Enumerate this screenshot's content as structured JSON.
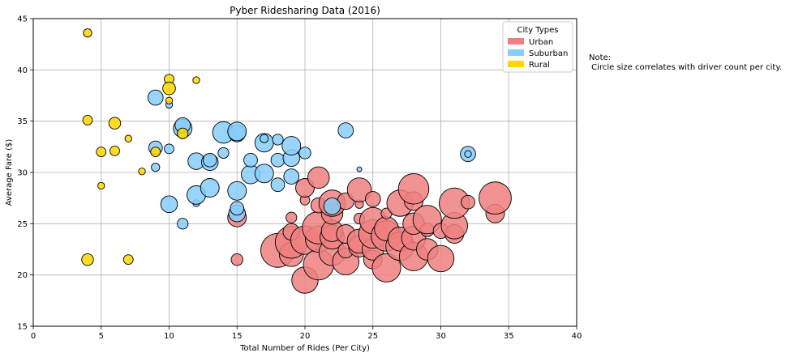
{
  "chart_data": {
    "type": "scatter",
    "title": "Pyber Ridesharing Data (2016)",
    "xlabel": "Total Number of Rides (Per City)",
    "ylabel": "Average Fare ($)",
    "xlim": [
      0,
      40
    ],
    "ylim": [
      15,
      45
    ],
    "xticks": [
      0,
      5,
      10,
      15,
      20,
      25,
      30,
      35,
      40
    ],
    "yticks": [
      15,
      20,
      25,
      30,
      35,
      40,
      45
    ],
    "grid": true,
    "legend": {
      "title": "City Types",
      "position": "upper-right"
    },
    "size_encoding": "driver count per city",
    "series": [
      {
        "name": "Urban",
        "color": "#f08080",
        "points": [
          [
            15,
            21.5,
            6
          ],
          [
            15,
            25.6,
            15
          ],
          [
            18,
            22.4,
            50
          ],
          [
            19,
            25.6,
            5
          ],
          [
            19,
            22.0,
            25
          ],
          [
            19,
            23.2,
            45
          ],
          [
            19,
            24.2,
            12
          ],
          [
            20,
            19.5,
            30
          ],
          [
            20,
            23.4,
            35
          ],
          [
            20,
            27.3,
            4
          ],
          [
            20,
            28.5,
            15
          ],
          [
            21,
            21.0,
            40
          ],
          [
            21,
            23.5,
            30
          ],
          [
            21,
            24.6,
            45
          ],
          [
            21,
            26.8,
            10
          ],
          [
            21,
            29.5,
            20
          ],
          [
            22,
            22.2,
            30
          ],
          [
            22,
            23.7,
            25
          ],
          [
            22,
            24.3,
            20
          ],
          [
            22,
            26.0,
            20
          ],
          [
            22,
            27.0,
            30
          ],
          [
            23,
            21.3,
            30
          ],
          [
            23,
            22.4,
            10
          ],
          [
            23,
            27.2,
            12
          ],
          [
            23,
            24.0,
            15
          ],
          [
            24,
            22.8,
            20
          ],
          [
            24,
            23.3,
            25
          ],
          [
            24,
            25.5,
            5
          ],
          [
            24,
            26.9,
            3
          ],
          [
            24,
            28.3,
            25
          ],
          [
            25,
            21.5,
            15
          ],
          [
            25,
            22.5,
            20
          ],
          [
            25,
            24.0,
            35
          ],
          [
            25,
            25.3,
            30
          ],
          [
            25,
            27.4,
            10
          ],
          [
            26,
            20.7,
            35
          ],
          [
            26,
            23.8,
            40
          ],
          [
            26,
            24.5,
            25
          ],
          [
            26,
            26.0,
            5
          ],
          [
            27,
            22.8,
            35
          ],
          [
            27,
            23.5,
            25
          ],
          [
            27,
            27.0,
            30
          ],
          [
            28,
            21.8,
            35
          ],
          [
            28,
            23.6,
            25
          ],
          [
            28,
            25.0,
            20
          ],
          [
            28,
            27.2,
            15
          ],
          [
            28,
            28.4,
            40
          ],
          [
            29,
            22.5,
            20
          ],
          [
            29,
            24.4,
            8
          ],
          [
            29,
            25.4,
            35
          ],
          [
            30,
            21.6,
            30
          ],
          [
            30,
            24.3,
            10
          ],
          [
            31,
            24.0,
            15
          ],
          [
            31,
            24.8,
            30
          ],
          [
            31,
            27.0,
            40
          ],
          [
            32,
            27.1,
            8
          ],
          [
            34,
            26.0,
            15
          ],
          [
            34,
            27.5,
            45
          ]
        ]
      },
      {
        "name": "Suburban",
        "color": "#87cefa",
        "points": [
          [
            9,
            30.5,
            3
          ],
          [
            9,
            32.4,
            8
          ],
          [
            9,
            37.3,
            10
          ],
          [
            10,
            26.9,
            12
          ],
          [
            10,
            32.3,
            4
          ],
          [
            10,
            36.6,
            2
          ],
          [
            11,
            25.0,
            5
          ],
          [
            11,
            34.3,
            15
          ],
          [
            11,
            34.6,
            10
          ],
          [
            12,
            27.0,
            2
          ],
          [
            12,
            27.8,
            15
          ],
          [
            12,
            31.1,
            12
          ],
          [
            13,
            28.5,
            15
          ],
          [
            13,
            31.0,
            12
          ],
          [
            13,
            31.2,
            8
          ],
          [
            14,
            31.9,
            5
          ],
          [
            14,
            33.9,
            20
          ],
          [
            15,
            26.0,
            12
          ],
          [
            15,
            26.5,
            8
          ],
          [
            15,
            28.2,
            15
          ],
          [
            15,
            33.8,
            12
          ],
          [
            15,
            34.0,
            15
          ],
          [
            16,
            29.8,
            15
          ],
          [
            16,
            31.2,
            8
          ],
          [
            17,
            29.9,
            15
          ],
          [
            17,
            32.9,
            15
          ],
          [
            17,
            33.3,
            3
          ],
          [
            18,
            28.8,
            8
          ],
          [
            18,
            31.2,
            8
          ],
          [
            18,
            33.2,
            5
          ],
          [
            19,
            29.6,
            10
          ],
          [
            19,
            31.4,
            12
          ],
          [
            19,
            32.6,
            15
          ],
          [
            20,
            31.9,
            6
          ],
          [
            22,
            26.7,
            12
          ],
          [
            23,
            34.1,
            10
          ],
          [
            24,
            30.3,
            1
          ],
          [
            32,
            31.8,
            10
          ],
          [
            32,
            31.8,
            2
          ]
        ]
      },
      {
        "name": "Rural",
        "color": "#ffd700",
        "points": [
          [
            4,
            43.6,
            3
          ],
          [
            4,
            35.1,
            4
          ],
          [
            4,
            21.5,
            6
          ],
          [
            5,
            32.0,
            4
          ],
          [
            5,
            28.7,
            2
          ],
          [
            6,
            34.8,
            6
          ],
          [
            6,
            32.1,
            4
          ],
          [
            7,
            33.3,
            2
          ],
          [
            7,
            21.5,
            4
          ],
          [
            8,
            30.1,
            2
          ],
          [
            9,
            32.0,
            4
          ],
          [
            10,
            39.1,
            4
          ],
          [
            10,
            38.2,
            7
          ],
          [
            10,
            37.0,
            2
          ],
          [
            11,
            33.8,
            5
          ],
          [
            12,
            39.0,
            2
          ]
        ]
      }
    ]
  },
  "note": "Note:\n Circle size correlates with driver count per city."
}
